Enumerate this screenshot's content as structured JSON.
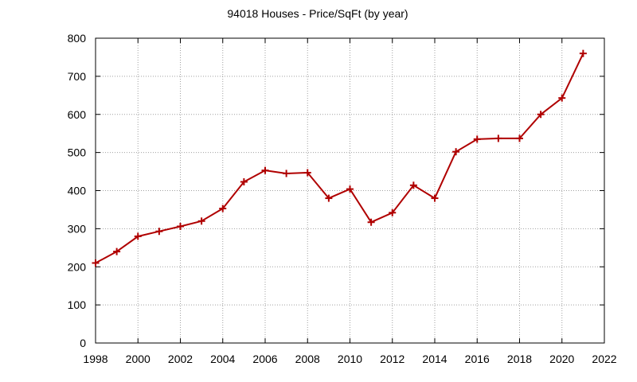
{
  "chart_data": {
    "type": "line",
    "title": "94018 Houses - Price/SqFt (by year)",
    "xlabel": "",
    "ylabel": "",
    "xlim": [
      1998,
      2022
    ],
    "ylim": [
      0,
      800
    ],
    "x_ticks": [
      1998,
      2000,
      2002,
      2004,
      2006,
      2008,
      2010,
      2012,
      2014,
      2016,
      2018,
      2020,
      2022
    ],
    "y_ticks": [
      0,
      100,
      200,
      300,
      400,
      500,
      600,
      700,
      800
    ],
    "grid": true,
    "legend": "none",
    "series": [
      {
        "color": "#b00000",
        "marker": "plus",
        "x": [
          1998,
          1999,
          2000,
          2001,
          2002,
          2003,
          2004,
          2005,
          2006,
          2007,
          2008,
          2009,
          2010,
          2011,
          2012,
          2013,
          2014,
          2015,
          2016,
          2017,
          2018,
          2019,
          2020,
          2021
        ],
        "values": [
          210,
          240,
          280,
          293,
          306,
          320,
          353,
          423,
          453,
          445,
          447,
          380,
          404,
          317,
          342,
          414,
          380,
          502,
          535,
          537,
          537,
          600,
          643,
          760
        ]
      }
    ]
  }
}
